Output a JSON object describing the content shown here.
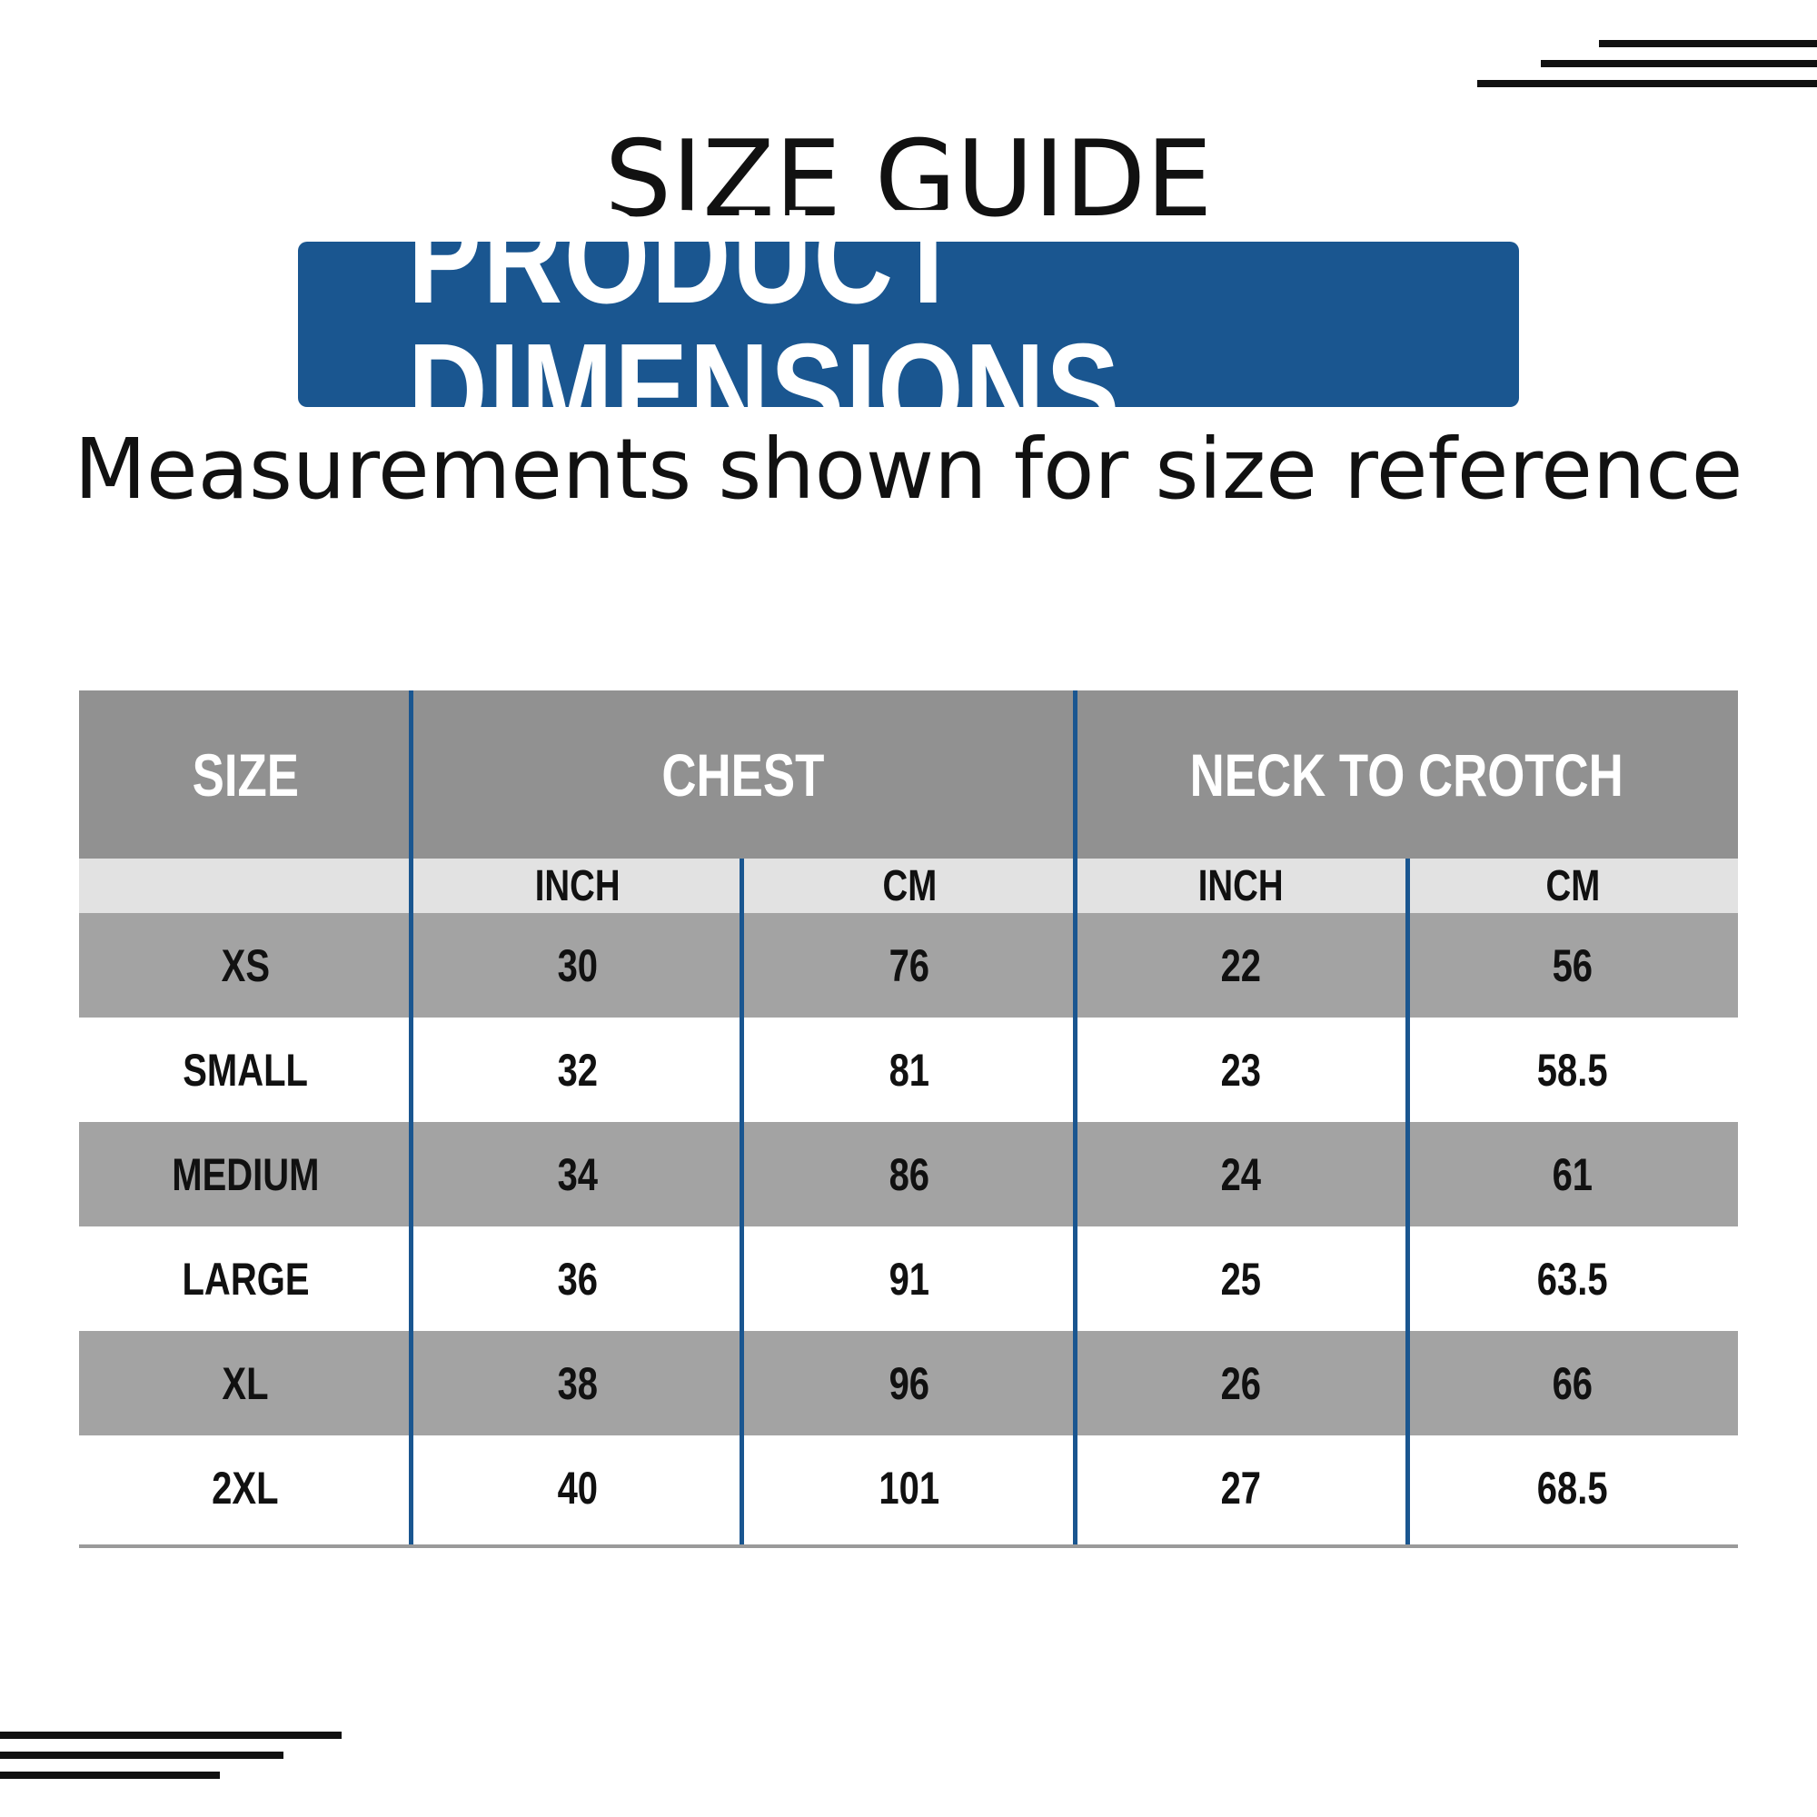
{
  "header": {
    "title": "SIZE GUIDE",
    "banner": "PRODUCT DIMENSIONS",
    "subtitle": "Measurements shown for size reference"
  },
  "table": {
    "columns": {
      "size": "SIZE",
      "chest": "CHEST",
      "neck_to_crotch": "NECK TO CROTCH"
    },
    "units": [
      "INCH",
      "CM",
      "INCH",
      "CM"
    ],
    "rows": [
      {
        "size": "XS",
        "chest_inch": "30",
        "chest_cm": "76",
        "neck_inch": "22",
        "neck_cm": "56"
      },
      {
        "size": "SMALL",
        "chest_inch": "32",
        "chest_cm": "81",
        "neck_inch": "23",
        "neck_cm": "58.5"
      },
      {
        "size": "MEDIUM",
        "chest_inch": "34",
        "chest_cm": "86",
        "neck_inch": "24",
        "neck_cm": "61"
      },
      {
        "size": "LARGE",
        "chest_inch": "36",
        "chest_cm": "91",
        "neck_inch": "25",
        "neck_cm": "63.5"
      },
      {
        "size": "XL",
        "chest_inch": "38",
        "chest_cm": "96",
        "neck_inch": "26",
        "neck_cm": "66"
      },
      {
        "size": "2XL",
        "chest_inch": "40",
        "chest_cm": "101",
        "neck_inch": "27",
        "neck_cm": "68.5"
      }
    ]
  },
  "colors": {
    "accent": "#1a5690",
    "header_gray": "#919191",
    "row_gray": "#a3a3a3",
    "unit_row": "#e2e2e2"
  }
}
